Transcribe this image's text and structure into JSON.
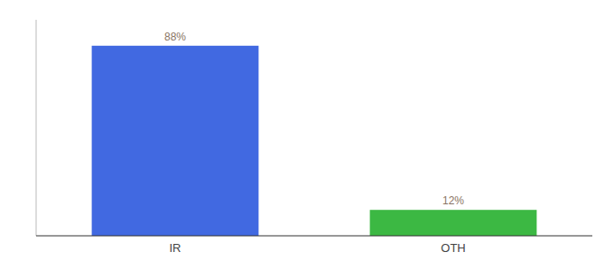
{
  "chart_data": {
    "type": "bar",
    "categories": [
      "IR",
      "OTH"
    ],
    "values": [
      88,
      12
    ],
    "value_labels": [
      "88%",
      "12%"
    ],
    "colors": [
      "#4169e1",
      "#3cb843"
    ],
    "ylim": [
      0,
      100
    ],
    "tick_labels": "x",
    "data_labels": true,
    "grid": false
  }
}
